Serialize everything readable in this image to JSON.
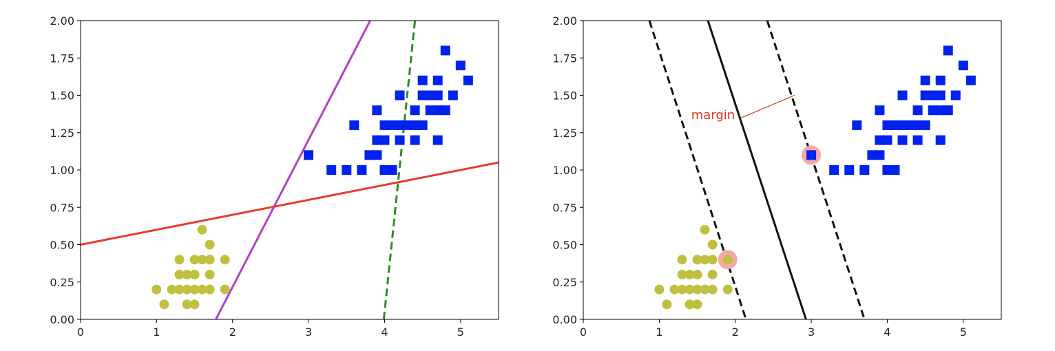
{
  "chart_data": [
    {
      "type": "scatter",
      "title": "",
      "xlabel": "",
      "ylabel": "",
      "xlim": [
        0,
        5.5
      ],
      "ylim": [
        0,
        2.0
      ],
      "grid": false,
      "x_ticks": [
        "0",
        "1",
        "2",
        "3",
        "4",
        "5"
      ],
      "x_tick_values": [
        0,
        1,
        2,
        3,
        4,
        5
      ],
      "y_ticks": [
        "0.00",
        "0.25",
        "0.50",
        "0.75",
        "1.00",
        "1.25",
        "1.50",
        "1.75",
        "2.00"
      ],
      "y_tick_values": [
        0,
        0.25,
        0.5,
        0.75,
        1.0,
        1.25,
        1.5,
        1.75,
        2.0
      ],
      "series": [
        {
          "marker": "circle",
          "color": "#c0c040",
          "points": [
            [
              1.0,
              0.2
            ],
            [
              1.1,
              0.1
            ],
            [
              1.2,
              0.2
            ],
            [
              1.3,
              0.2
            ],
            [
              1.3,
              0.3
            ],
            [
              1.3,
              0.4
            ],
            [
              1.4,
              0.2
            ],
            [
              1.4,
              0.3
            ],
            [
              1.4,
              0.1
            ],
            [
              1.5,
              0.2
            ],
            [
              1.5,
              0.4
            ],
            [
              1.5,
              0.3
            ],
            [
              1.5,
              0.1
            ],
            [
              1.6,
              0.2
            ],
            [
              1.6,
              0.4
            ],
            [
              1.6,
              0.6
            ],
            [
              1.7,
              0.3
            ],
            [
              1.7,
              0.4
            ],
            [
              1.7,
              0.5
            ],
            [
              1.7,
              0.2
            ],
            [
              1.9,
              0.2
            ],
            [
              1.9,
              0.4
            ]
          ]
        },
        {
          "marker": "square",
          "color": "#0022ee",
          "points": [
            [
              3.0,
              1.1
            ],
            [
              3.3,
              1.0
            ],
            [
              3.5,
              1.0
            ],
            [
              3.6,
              1.3
            ],
            [
              3.7,
              1.0
            ],
            [
              3.8,
              1.1
            ],
            [
              3.9,
              1.1
            ],
            [
              3.9,
              1.2
            ],
            [
              3.9,
              1.4
            ],
            [
              4.0,
              1.0
            ],
            [
              4.0,
              1.3
            ],
            [
              4.0,
              1.2
            ],
            [
              4.1,
              1.0
            ],
            [
              4.1,
              1.3
            ],
            [
              4.2,
              1.3
            ],
            [
              4.2,
              1.5
            ],
            [
              4.2,
              1.2
            ],
            [
              4.3,
              1.3
            ],
            [
              4.4,
              1.4
            ],
            [
              4.4,
              1.2
            ],
            [
              4.4,
              1.3
            ],
            [
              4.5,
              1.5
            ],
            [
              4.5,
              1.6
            ],
            [
              4.5,
              1.3
            ],
            [
              4.6,
              1.5
            ],
            [
              4.6,
              1.4
            ],
            [
              4.7,
              1.4
            ],
            [
              4.7,
              1.5
            ],
            [
              4.7,
              1.2
            ],
            [
              4.7,
              1.6
            ],
            [
              4.8,
              1.4
            ],
            [
              4.8,
              1.8
            ],
            [
              4.9,
              1.5
            ],
            [
              5.0,
              1.7
            ],
            [
              5.1,
              1.6
            ]
          ]
        }
      ],
      "lines": [
        {
          "color": "#2e8b22",
          "style": "dashed",
          "x": [
            3.99,
            4.4
          ],
          "y": [
            0,
            2.0
          ]
        },
        {
          "color": "#b040c8",
          "style": "solid",
          "x": [
            1.78,
            3.81
          ],
          "y": [
            0,
            2.0
          ]
        },
        {
          "color": "#e63c2c",
          "style": "solid",
          "x": [
            0,
            5.5
          ],
          "y": [
            0.5,
            1.05
          ]
        }
      ]
    },
    {
      "type": "scatter",
      "title": "",
      "xlabel": "",
      "ylabel": "",
      "xlim": [
        0,
        5.5
      ],
      "ylim": [
        0,
        2.0
      ],
      "grid": false,
      "x_ticks": [
        "0",
        "1",
        "2",
        "3",
        "4",
        "5"
      ],
      "x_tick_values": [
        0,
        1,
        2,
        3,
        4,
        5
      ],
      "y_ticks": [
        "0.00",
        "0.25",
        "0.50",
        "0.75",
        "1.00",
        "1.25",
        "1.50",
        "1.75",
        "2.00"
      ],
      "y_tick_values": [
        0,
        0.25,
        0.5,
        0.75,
        1.0,
        1.25,
        1.5,
        1.75,
        2.0
      ],
      "series": [
        {
          "marker": "circle",
          "color": "#c0c040",
          "points": [
            [
              1.0,
              0.2
            ],
            [
              1.1,
              0.1
            ],
            [
              1.2,
              0.2
            ],
            [
              1.3,
              0.2
            ],
            [
              1.3,
              0.3
            ],
            [
              1.3,
              0.4
            ],
            [
              1.4,
              0.2
            ],
            [
              1.4,
              0.3
            ],
            [
              1.4,
              0.1
            ],
            [
              1.5,
              0.2
            ],
            [
              1.5,
              0.4
            ],
            [
              1.5,
              0.3
            ],
            [
              1.5,
              0.1
            ],
            [
              1.6,
              0.2
            ],
            [
              1.6,
              0.4
            ],
            [
              1.6,
              0.6
            ],
            [
              1.7,
              0.3
            ],
            [
              1.7,
              0.4
            ],
            [
              1.7,
              0.5
            ],
            [
              1.7,
              0.2
            ],
            [
              1.9,
              0.2
            ],
            [
              1.9,
              0.4
            ]
          ]
        },
        {
          "marker": "square",
          "color": "#0022ee",
          "points": [
            [
              3.0,
              1.1
            ],
            [
              3.3,
              1.0
            ],
            [
              3.5,
              1.0
            ],
            [
              3.6,
              1.3
            ],
            [
              3.7,
              1.0
            ],
            [
              3.8,
              1.1
            ],
            [
              3.9,
              1.1
            ],
            [
              3.9,
              1.2
            ],
            [
              3.9,
              1.4
            ],
            [
              4.0,
              1.0
            ],
            [
              4.0,
              1.3
            ],
            [
              4.0,
              1.2
            ],
            [
              4.1,
              1.0
            ],
            [
              4.1,
              1.3
            ],
            [
              4.2,
              1.3
            ],
            [
              4.2,
              1.5
            ],
            [
              4.2,
              1.2
            ],
            [
              4.3,
              1.3
            ],
            [
              4.4,
              1.4
            ],
            [
              4.4,
              1.2
            ],
            [
              4.4,
              1.3
            ],
            [
              4.5,
              1.5
            ],
            [
              4.5,
              1.6
            ],
            [
              4.5,
              1.3
            ],
            [
              4.6,
              1.5
            ],
            [
              4.6,
              1.4
            ],
            [
              4.7,
              1.4
            ],
            [
              4.7,
              1.5
            ],
            [
              4.7,
              1.2
            ],
            [
              4.7,
              1.6
            ],
            [
              4.8,
              1.4
            ],
            [
              4.8,
              1.8
            ],
            [
              4.9,
              1.5
            ],
            [
              5.0,
              1.7
            ],
            [
              5.1,
              1.6
            ]
          ]
        }
      ],
      "lines": [
        {
          "color": "#111111",
          "style": "dashed",
          "x": [
            0.87,
            2.14
          ],
          "y": [
            2.0,
            0
          ]
        },
        {
          "color": "#111111",
          "style": "solid",
          "x": [
            1.64,
            2.93
          ],
          "y": [
            2.0,
            0
          ]
        },
        {
          "color": "#111111",
          "style": "dashed",
          "x": [
            2.42,
            3.7
          ],
          "y": [
            2.0,
            0
          ]
        }
      ],
      "support_vectors": {
        "color": "#f4a8a8",
        "points": [
          [
            1.9,
            0.4
          ],
          [
            3.0,
            1.1
          ]
        ]
      },
      "annotation": {
        "text": "margin",
        "color": "#e0301c",
        "text_at": [
          1.42,
          1.34
        ],
        "arrow_from": [
          2.08,
          1.35
        ],
        "arrow_to": [
          2.78,
          1.5
        ]
      }
    }
  ]
}
